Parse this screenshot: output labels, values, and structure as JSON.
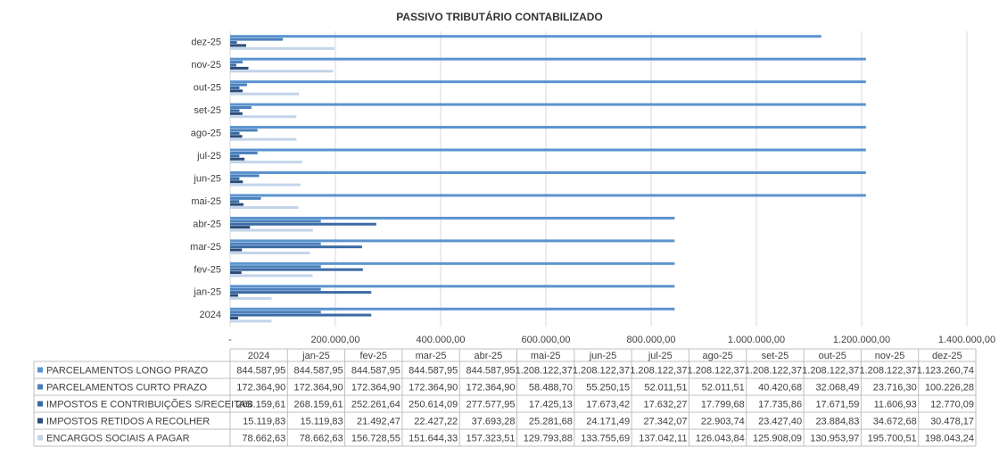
{
  "chart_data": {
    "type": "bar",
    "orientation": "horizontal",
    "title": "PASSIVO TRIBUTÁRIO CONTABILIZADO",
    "categories": [
      "2024",
      "jan-25",
      "fev-25",
      "mar-25",
      "abr-25",
      "mai-25",
      "jun-25",
      "jul-25",
      "ago-25",
      "set-25",
      "out-25",
      "nov-25",
      "dez-25"
    ],
    "xlim": [
      0,
      1400000
    ],
    "xticks": [
      {
        "value": 0,
        "label": "-"
      },
      {
        "value": 200000,
        "label": "200.000,00"
      },
      {
        "value": 400000,
        "label": "400.000,00"
      },
      {
        "value": 600000,
        "label": "600.000,00"
      },
      {
        "value": 800000,
        "label": "800.000,00"
      },
      {
        "value": 1000000,
        "label": "1.000.000,00"
      },
      {
        "value": 1200000,
        "label": "1.200.000,00"
      },
      {
        "value": 1400000,
        "label": "1.400.000,00"
      }
    ],
    "grid": true,
    "series": [
      {
        "name": "PARCELAMENTOS LONGO PRAZO",
        "color": "#5b93cf",
        "values": [
          844587.95,
          844587.95,
          844587.95,
          844587.95,
          844587.95,
          1208122.37,
          1208122.37,
          1208122.37,
          1208122.37,
          1208122.37,
          1208122.37,
          1208122.37,
          1123260.74
        ],
        "value_labels": [
          "844.587,95",
          "844.587,95",
          "844.587,95",
          "844.587,95",
          "844.587,95",
          "1.208.122,37",
          "1.208.122,37",
          "1.208.122,37",
          "1.208.122,37",
          "1.208.122,37",
          "1.208.122,37",
          "1.208.122,37",
          "1.123.260,74"
        ]
      },
      {
        "name": "PARCELAMENTOS CURTO PRAZO",
        "color": "#4a80bd",
        "values": [
          172364.9,
          172364.9,
          172364.9,
          172364.9,
          172364.9,
          58488.7,
          55250.15,
          52011.51,
          52011.51,
          40420.68,
          32068.49,
          23716.3,
          100226.28
        ],
        "value_labels": [
          "172.364,90",
          "172.364,90",
          "172.364,90",
          "172.364,90",
          "172.364,90",
          "58.488,70",
          "55.250,15",
          "52.011,51",
          "52.011,51",
          "40.420,68",
          "32.068,49",
          "23.716,30",
          "100.226,28"
        ]
      },
      {
        "name": "IMPOSTOS E CONTRIBUIÇÕES S/RECEITAS",
        "color": "#3a6aa3",
        "values": [
          268159.61,
          268159.61,
          252261.64,
          250614.09,
          277577.95,
          17425.13,
          17673.42,
          17632.27,
          17799.68,
          17735.86,
          17671.59,
          11606.93,
          12770.09
        ],
        "value_labels": [
          "268.159,61",
          "268.159,61",
          "252.261,64",
          "250.614,09",
          "277.577,95",
          "17.425,13",
          "17.673,42",
          "17.632,27",
          "17.799,68",
          "17.735,86",
          "17.671,59",
          "11.606,93",
          "12.770,09"
        ]
      },
      {
        "name": "IMPOSTOS RETIDOS A RECOLHER",
        "color": "#2b4c78",
        "values": [
          15119.83,
          15119.83,
          21492.47,
          22427.22,
          37693.28,
          25281.68,
          24171.49,
          27342.07,
          22903.74,
          23427.4,
          23884.83,
          34672.68,
          30478.17
        ],
        "value_labels": [
          "15.119,83",
          "15.119,83",
          "21.492,47",
          "22.427,22",
          "37.693,28",
          "25.281,68",
          "24.171,49",
          "27.342,07",
          "22.903,74",
          "23.427,40",
          "23.884,83",
          "34.672,68",
          "30.478,17"
        ]
      },
      {
        "name": "ENCARGOS SOCIAIS A PAGAR",
        "color": "#c3d4ea",
        "values": [
          78662.63,
          78662.63,
          156728.55,
          151644.33,
          157323.51,
          129793.88,
          133755.69,
          137042.11,
          126043.84,
          125908.09,
          130953.97,
          195700.51,
          198043.24
        ],
        "value_labels": [
          "78.662,63",
          "78.662,63",
          "156.728,55",
          "151.644,33",
          "157.323,51",
          "129.793,88",
          "133.755,69",
          "137.042,11",
          "126.043,84",
          "125.908,09",
          "130.953,97",
          "195.700,51",
          "198.043,24"
        ]
      }
    ]
  }
}
